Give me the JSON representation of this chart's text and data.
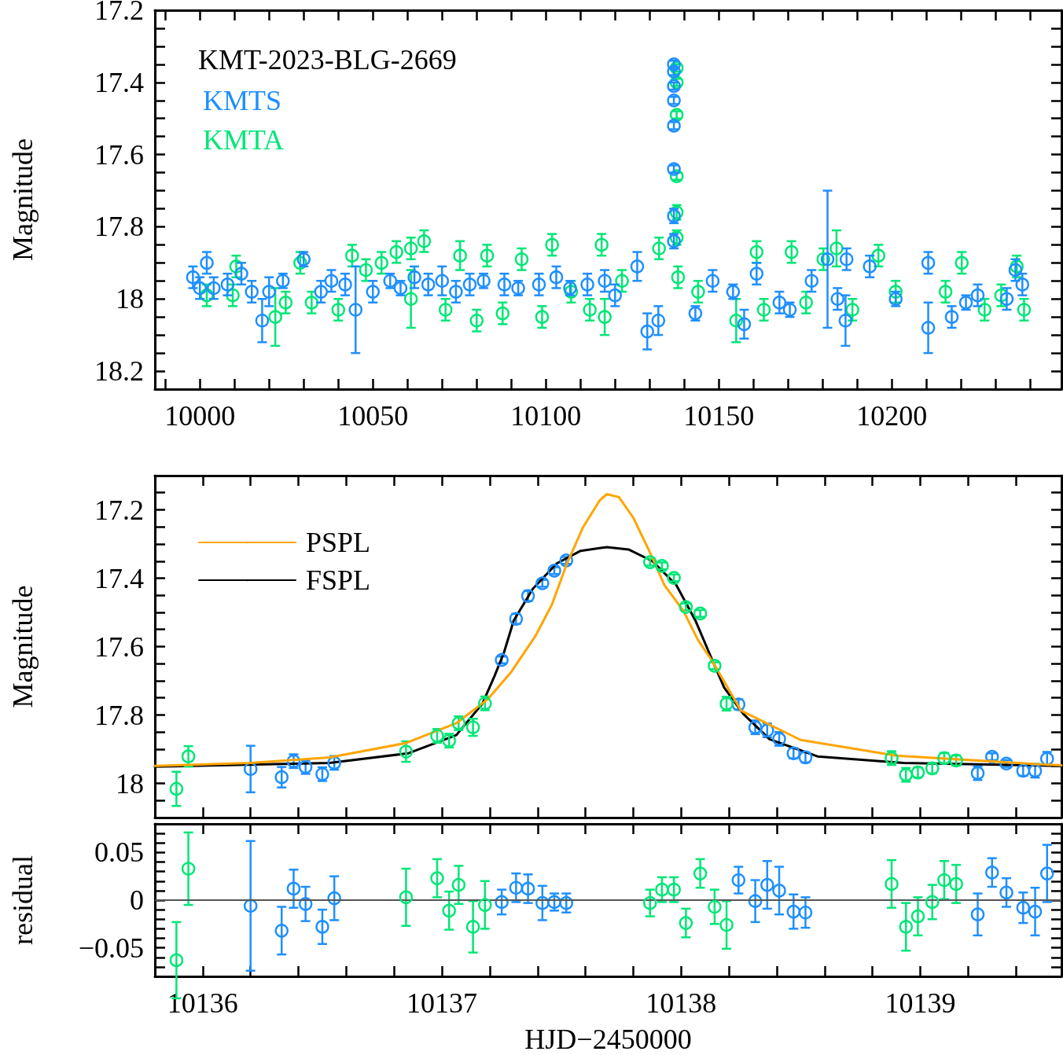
{
  "chart_data": [
    {
      "type": "scatter",
      "legend_title": "KMT-2023-BLG-2669",
      "ylabel": "Magnitude",
      "legend": "top left",
      "marker": "circle",
      "xlim": [
        9987,
        10249
      ],
      "ylim": [
        18.25,
        17.2
      ],
      "xticks": [
        {
          "value": 9990,
          "label": null
        },
        10000,
        {
          "value": 10010,
          "label": null
        },
        {
          "value": 10020,
          "label": null
        },
        {
          "value": 10030,
          "label": null
        },
        {
          "value": 10040,
          "label": null
        },
        10050,
        {
          "value": 10060,
          "label": null
        },
        {
          "value": 10070,
          "label": null
        },
        {
          "value": 10080,
          "label": null
        },
        {
          "value": 10090,
          "label": null
        },
        10100,
        {
          "value": 10110,
          "label": null
        },
        {
          "value": 10120,
          "label": null
        },
        {
          "value": 10130,
          "label": null
        },
        {
          "value": 10140,
          "label": null
        },
        10150,
        {
          "value": 10160,
          "label": null
        },
        {
          "value": 10170,
          "label": null
        },
        {
          "value": 10180,
          "label": null
        },
        {
          "value": 10190,
          "label": null
        },
        10200,
        {
          "value": 10210,
          "label": null
        },
        {
          "value": 10220,
          "label": null
        },
        {
          "value": 10230,
          "label": null
        },
        {
          "value": 10240,
          "label": null
        }
      ],
      "yticks": [
        17.2,
        {
          "value": 17.25,
          "label": null
        },
        {
          "value": 17.3,
          "label": null
        },
        {
          "value": 17.35,
          "label": null
        },
        17.4,
        {
          "value": 17.45,
          "label": null
        },
        {
          "value": 17.5,
          "label": null
        },
        {
          "value": 17.55,
          "label": null
        },
        17.6,
        {
          "value": 17.65,
          "label": null
        },
        {
          "value": 17.7,
          "label": null
        },
        {
          "value": 17.75,
          "label": null
        },
        17.8,
        {
          "value": 17.85,
          "label": null
        },
        {
          "value": 17.9,
          "label": null
        },
        {
          "value": 17.95,
          "label": null
        },
        18,
        {
          "value": 18.05,
          "label": null
        },
        {
          "value": 18.1,
          "label": null
        },
        {
          "value": 18.15,
          "label": null
        },
        18.2
      ],
      "series": [
        {
          "name": "KMTS",
          "color": "#1e8fff",
          "x": [
            9998,
            10000,
            10002,
            10004,
            10008,
            10012,
            10015,
            10018,
            10020,
            10024,
            10030,
            10035,
            10038,
            10042,
            10045,
            10050,
            10055,
            10058,
            10062,
            10066,
            10070,
            10074,
            10078,
            10082,
            10088,
            10092,
            10098,
            10103,
            10107,
            10112,
            10117,
            10120,
            10126.4,
            10129.3,
            10132.5,
            10137,
            10137,
            10137,
            10137,
            10137,
            10137,
            10137,
            10137,
            10143.2,
            10148.2,
            10154.1,
            10157.3,
            10160.9,
            10167.5,
            10170.5,
            10176.8,
            10181.4,
            10184.3,
            10186.6,
            10186.9,
            10193.6,
            10201.1,
            10210.5,
            10210.5,
            10217.3,
            10221.4,
            10224.8,
            10233.2,
            10235.7,
            10237.7
          ],
          "values": [
            17.94,
            17.97,
            17.9,
            17.97,
            17.96,
            17.93,
            17.98,
            18.06,
            17.98,
            17.95,
            17.89,
            17.98,
            17.95,
            17.96,
            18.03,
            17.98,
            17.95,
            17.97,
            17.94,
            17.96,
            17.95,
            17.98,
            17.96,
            17.95,
            17.96,
            17.97,
            17.96,
            17.94,
            17.97,
            17.96,
            17.95,
            17.99,
            17.91,
            18.09,
            18.06,
            17.35,
            17.37,
            17.41,
            17.45,
            17.52,
            17.64,
            17.77,
            17.84,
            18.04,
            17.95,
            17.98,
            18.07,
            17.93,
            18.01,
            18.03,
            17.95,
            17.89,
            18,
            18.06,
            17.89,
            17.91,
            18,
            18.08,
            17.9,
            18.05,
            18.01,
            17.99,
            18,
            17.92,
            17.96
          ],
          "errors": [
            0.03,
            0.03,
            0.03,
            0.03,
            0.03,
            0.03,
            0.03,
            0.06,
            0.04,
            0.02,
            0.02,
            0.03,
            0.03,
            0.03,
            0.12,
            0.03,
            0.02,
            0.02,
            0.03,
            0.03,
            0.04,
            0.03,
            0.03,
            0.02,
            0.03,
            0.02,
            0.03,
            0.03,
            0.02,
            0.03,
            0.03,
            0.03,
            0.04,
            0.05,
            0.04,
            0.01,
            0.01,
            0.01,
            0.01,
            0.01,
            0.01,
            0.02,
            0.02,
            0.02,
            0.03,
            0.02,
            0.04,
            0.03,
            0.03,
            0.02,
            0.03,
            0.19,
            0.03,
            0.07,
            0.03,
            0.03,
            0.02,
            0.07,
            0.03,
            0.03,
            0.02,
            0.03,
            0.03,
            0.03,
            0.03
          ]
        },
        {
          "name": "KMTA",
          "color": "#00e676",
          "x": [
            10002,
            10009.5,
            10010.5,
            10021.8,
            10024.8,
            10029,
            10032.3,
            10040,
            10044,
            10048,
            10052.5,
            10056.8,
            10061,
            10061,
            10064.8,
            10071,
            10075.2,
            10080,
            10083,
            10087.5,
            10093,
            10098.9,
            10101.8,
            10107.3,
            10112.7,
            10116.1,
            10117,
            10122,
            10132.7,
            10137.8,
            10137.8,
            10137.8,
            10137.8,
            10137.8,
            10137.8,
            10138.2,
            10144,
            10155,
            10160.9,
            10163,
            10171,
            10175.2,
            10180.2,
            10184,
            10188.6,
            10196.1,
            10201.1,
            10215.5,
            10220.2,
            10226.8,
            10231.6,
            10236.1,
            10238.2
          ],
          "values": [
            17.99,
            17.99,
            17.91,
            18.05,
            18.01,
            17.9,
            18.01,
            18.03,
            17.88,
            17.92,
            17.9,
            17.87,
            17.86,
            18,
            17.84,
            18.03,
            17.88,
            18.06,
            17.88,
            18.04,
            17.89,
            18.05,
            17.85,
            17.98,
            18.03,
            17.85,
            18.05,
            17.95,
            17.86,
            17.36,
            17.4,
            17.49,
            17.66,
            17.76,
            17.83,
            17.94,
            17.98,
            18.06,
            17.87,
            18.03,
            17.87,
            18.01,
            17.89,
            17.86,
            18.03,
            17.88,
            17.98,
            17.98,
            17.9,
            18.03,
            17.99,
            17.91,
            18.03
          ],
          "errors": [
            0.03,
            0.03,
            0.03,
            0.08,
            0.03,
            0.03,
            0.03,
            0.03,
            0.03,
            0.03,
            0.03,
            0.03,
            0.03,
            0.08,
            0.03,
            0.03,
            0.04,
            0.03,
            0.03,
            0.03,
            0.03,
            0.03,
            0.03,
            0.03,
            0.03,
            0.03,
            0.05,
            0.03,
            0.03,
            0.01,
            0.01,
            0.01,
            0.01,
            0.02,
            0.02,
            0.03,
            0.03,
            0.06,
            0.03,
            0.03,
            0.03,
            0.03,
            0.03,
            0.05,
            0.03,
            0.03,
            0.03,
            0.03,
            0.03,
            0.03,
            0.03,
            0.03,
            0.03
          ]
        }
      ]
    },
    {
      "type": "scatter",
      "ylabel": "Magnitude",
      "legend": "top left",
      "marker": "circle",
      "tick_labels": "y",
      "xlim": [
        10135.8,
        10139.59
      ],
      "ylim": [
        18.1,
        17.1
      ],
      "xticks": [
        10136,
        {
          "value": 10136.2,
          "label": null
        },
        {
          "value": 10136.4,
          "label": null
        },
        {
          "value": 10136.6,
          "label": null
        },
        {
          "value": 10136.8,
          "label": null
        },
        10137,
        {
          "value": 10137.2,
          "label": null
        },
        {
          "value": 10137.4,
          "label": null
        },
        {
          "value": 10137.6,
          "label": null
        },
        {
          "value": 10137.8,
          "label": null
        },
        10138,
        {
          "value": 10138.2,
          "label": null
        },
        {
          "value": 10138.4,
          "label": null
        },
        {
          "value": 10138.6,
          "label": null
        },
        {
          "value": 10138.8,
          "label": null
        },
        10139,
        {
          "value": 10139.2,
          "label": null
        },
        {
          "value": 10139.4,
          "label": null
        }
      ],
      "yticks": [
        {
          "value": 17.15,
          "label": null
        },
        17.2,
        {
          "value": 17.25,
          "label": null
        },
        {
          "value": 17.3,
          "label": null
        },
        {
          "value": 17.35,
          "label": null
        },
        17.4,
        {
          "value": 17.45,
          "label": null
        },
        {
          "value": 17.5,
          "label": null
        },
        {
          "value": 17.55,
          "label": null
        },
        17.6,
        {
          "value": 17.65,
          "label": null
        },
        {
          "value": 17.7,
          "label": null
        },
        {
          "value": 17.75,
          "label": null
        },
        17.8,
        {
          "value": 17.85,
          "label": null
        },
        {
          "value": 17.9,
          "label": null
        },
        {
          "value": 17.95,
          "label": null
        },
        18,
        {
          "value": 18.05,
          "label": null
        }
      ],
      "series": [
        {
          "color": "#00e676",
          "x": [
            10135.89,
            10135.94,
            10136.85,
            10136.98,
            10137.03,
            10137.07,
            10137.13,
            10137.18,
            10137.87,
            10137.92,
            10137.97,
            10138.02,
            10138.08,
            10138.14,
            10138.19,
            10138.88,
            10138.94,
            10138.99,
            10139.05,
            10139.1,
            10139.15
          ],
          "values": [
            18.016,
            17.921,
            17.907,
            17.861,
            17.875,
            17.824,
            17.836,
            17.766,
            17.353,
            17.364,
            17.399,
            17.484,
            17.503,
            17.656,
            17.767,
            17.926,
            17.975,
            17.968,
            17.956,
            17.926,
            17.933
          ],
          "errors": [
            0.05,
            0.03,
            0.03,
            0.02,
            0.02,
            0.02,
            0.025,
            0.02,
            0.01,
            0.01,
            0.01,
            0.01,
            0.01,
            0.01,
            0.02,
            0.02,
            0.02,
            0.015,
            0.015,
            0.015,
            0.015
          ]
        },
        {
          "color": "#1e8fff",
          "x": [
            10136.2,
            10136.33,
            10136.38,
            10136.43,
            10136.5,
            10136.55,
            10137.25,
            10137.31,
            10137.36,
            10137.42,
            10137.47,
            10137.52,
            10138.24,
            10138.31,
            10138.36,
            10138.41,
            10138.47,
            10138.52,
            10139.24,
            10139.3,
            10139.36,
            10139.43,
            10139.48,
            10139.53
          ],
          "values": [
            17.958,
            17.982,
            17.935,
            17.952,
            17.973,
            17.94,
            17.639,
            17.519,
            17.452,
            17.415,
            17.378,
            17.348,
            17.769,
            17.836,
            17.845,
            17.87,
            17.912,
            17.924,
            17.97,
            17.922,
            17.942,
            17.963,
            17.963,
            17.928
          ],
          "errors": [
            0.068,
            0.03,
            0.02,
            0.02,
            0.02,
            0.02,
            0.01,
            0.015,
            0.015,
            0.01,
            0.01,
            0.01,
            0.015,
            0.02,
            0.02,
            0.02,
            0.015,
            0.015,
            0.02,
            0.01,
            0.01,
            0.015,
            0.02,
            0.02
          ]
        },
        {
          "type": "line",
          "name": "PSPL",
          "color": "#ffa500",
          "marker": "none",
          "x": [
            10135.8,
            10136.2,
            10136.53,
            10136.85,
            10137.06,
            10137.19,
            10137.29,
            10137.39,
            10137.46,
            10137.52,
            10137.59,
            10137.66,
            10137.69,
            10137.74,
            10137.8,
            10137.87,
            10137.93,
            10138.01,
            10138.07,
            10138.13,
            10138.25,
            10138.5,
            10138.9,
            10139.5,
            10139.59
          ],
          "values": [
            17.949,
            17.94,
            17.924,
            17.882,
            17.824,
            17.755,
            17.674,
            17.57,
            17.477,
            17.362,
            17.251,
            17.172,
            17.154,
            17.163,
            17.223,
            17.325,
            17.42,
            17.496,
            17.58,
            17.642,
            17.787,
            17.873,
            17.919,
            17.944,
            17.947
          ]
        },
        {
          "type": "line",
          "name": "FSPL",
          "color": "#000000",
          "marker": "none",
          "x": [
            10135.8,
            10136.53,
            10136.86,
            10137.06,
            10137.17,
            10137.22,
            10137.26,
            10137.3,
            10137.38,
            10137.48,
            10137.58,
            10137.69,
            10137.78,
            10137.88,
            10137.98,
            10138.06,
            10138.13,
            10138.18,
            10138.26,
            10138.37,
            10138.57,
            10138.93,
            10139.59
          ],
          "values": [
            17.951,
            17.94,
            17.912,
            17.859,
            17.766,
            17.686,
            17.616,
            17.524,
            17.431,
            17.357,
            17.32,
            17.309,
            17.316,
            17.35,
            17.42,
            17.524,
            17.639,
            17.72,
            17.797,
            17.871,
            17.921,
            17.94,
            17.949
          ]
        }
      ]
    },
    {
      "type": "scatter",
      "ylabel": "residual",
      "xlabel": "HJD−2450000",
      "marker": "circle",
      "xlim": [
        10135.8,
        10139.59
      ],
      "ylim": [
        -0.08,
        0.08
      ],
      "xticks": [
        10136,
        {
          "value": 10136.2,
          "label": null
        },
        {
          "value": 10136.4,
          "label": null
        },
        {
          "value": 10136.6,
          "label": null
        },
        {
          "value": 10136.8,
          "label": null
        },
        10137,
        {
          "value": 10137.2,
          "label": null
        },
        {
          "value": 10137.4,
          "label": null
        },
        {
          "value": 10137.6,
          "label": null
        },
        {
          "value": 10137.8,
          "label": null
        },
        10138,
        {
          "value": 10138.2,
          "label": null
        },
        {
          "value": 10138.4,
          "label": null
        },
        {
          "value": 10138.6,
          "label": null
        },
        {
          "value": 10138.8,
          "label": null
        },
        10139,
        {
          "value": 10139.2,
          "label": null
        },
        {
          "value": 10139.4,
          "label": null
        }
      ],
      "yticks": [
        {
          "value": -0.07,
          "label": null
        },
        {
          "value": -0.06,
          "label": null
        },
        {
          "value": -0.05,
          "label": "−0.05"
        },
        {
          "value": -0.04,
          "label": null
        },
        {
          "value": -0.03,
          "label": null
        },
        {
          "value": -0.02,
          "label": null
        },
        {
          "value": -0.01,
          "label": null
        },
        0,
        {
          "value": 0.01,
          "label": null
        },
        {
          "value": 0.02,
          "label": null
        },
        {
          "value": 0.03,
          "label": null
        },
        {
          "value": 0.04,
          "label": null
        },
        0.05,
        {
          "value": 0.06,
          "label": null
        },
        {
          "value": 0.07,
          "label": null
        }
      ],
      "ref_lines": [
        {
          "axis": "y",
          "value": 0,
          "color": "#555555"
        }
      ],
      "series": [
        {
          "color": "#00e676",
          "x": [
            10135.89,
            10135.94,
            10136.85,
            10136.98,
            10137.03,
            10137.07,
            10137.13,
            10137.18,
            10137.87,
            10137.92,
            10137.97,
            10138.02,
            10138.08,
            10138.14,
            10138.19,
            10138.88,
            10138.94,
            10138.99,
            10139.05,
            10139.1,
            10139.15
          ],
          "values": [
            -0.063,
            0.033,
            0.003,
            0.023,
            -0.011,
            0.016,
            -0.028,
            -0.005,
            -0.003,
            0.011,
            0.011,
            -0.024,
            0.028,
            -0.007,
            -0.026,
            0.017,
            -0.028,
            -0.017,
            -0.002,
            0.021,
            0.017
          ],
          "errors": [
            0.04,
            0.038,
            0.03,
            0.02,
            0.02,
            0.02,
            0.027,
            0.025,
            0.014,
            0.013,
            0.013,
            0.015,
            0.015,
            0.018,
            0.025,
            0.025,
            0.025,
            0.02,
            0.018,
            0.02,
            0.02
          ]
        },
        {
          "color": "#1e8fff",
          "x": [
            10136.2,
            10136.33,
            10136.38,
            10136.43,
            10136.5,
            10136.55,
            10137.25,
            10137.31,
            10137.36,
            10137.42,
            10137.47,
            10137.52,
            10138.24,
            10138.31,
            10138.36,
            10138.41,
            10138.47,
            10138.52,
            10139.24,
            10139.3,
            10139.36,
            10139.43,
            10139.48,
            10139.53
          ],
          "values": [
            -0.006,
            -0.032,
            0.012,
            -0.004,
            -0.028,
            0.002,
            -0.002,
            0.013,
            0.012,
            -0.003,
            -0.002,
            -0.003,
            0.021,
            -0.001,
            0.016,
            0.01,
            -0.012,
            -0.013,
            -0.015,
            0.029,
            0.008,
            -0.008,
            -0.012,
            0.028
          ],
          "errors": [
            0.068,
            0.025,
            0.02,
            0.018,
            0.018,
            0.023,
            0.013,
            0.015,
            0.015,
            0.018,
            0.009,
            0.01,
            0.014,
            0.022,
            0.025,
            0.025,
            0.018,
            0.016,
            0.022,
            0.015,
            0.015,
            0.016,
            0.025,
            0.03
          ]
        }
      ]
    }
  ]
}
